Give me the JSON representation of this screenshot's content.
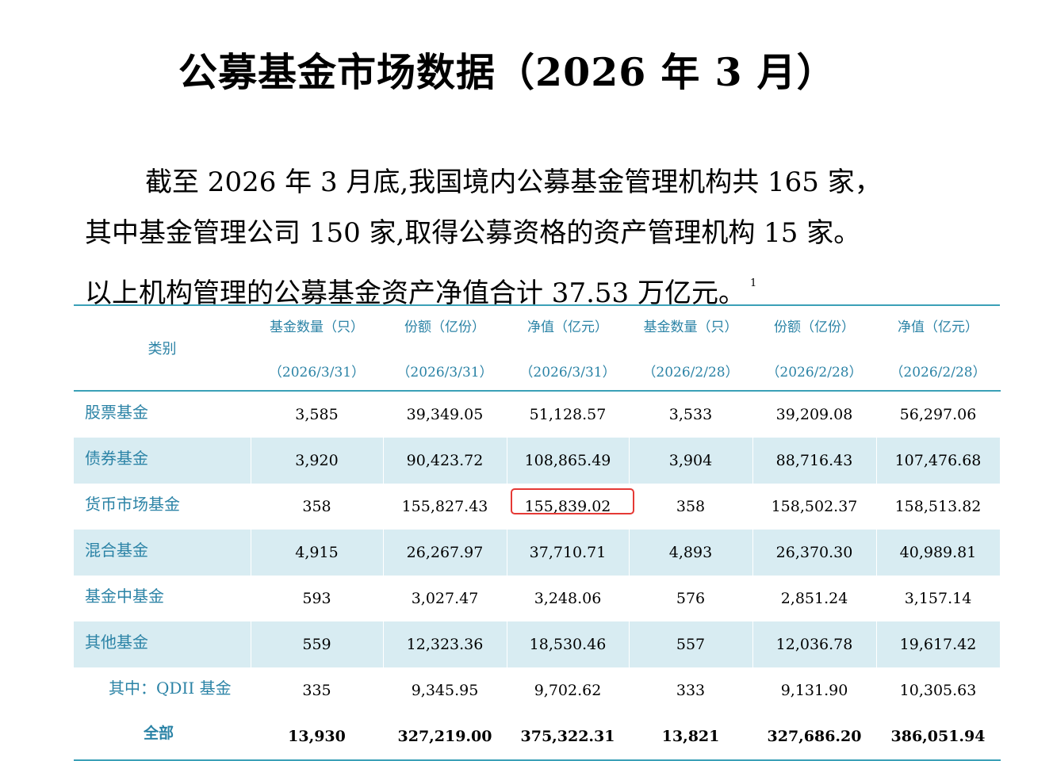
{
  "title": "公募基金市场数据（2026 年 3 月）",
  "paragraph": {
    "line1": "截至 2026 年 3 月底,我国境内公募基金管理机构共 165 家，",
    "line2": "其中基金管理公司 150 家,取得公募资格的资产管理机构 15 家。",
    "line3": "以上机构管理的公募基金资产净值合计 37.53 万亿元。",
    "footnote_mark": "1"
  },
  "table": {
    "category_header": "类别",
    "headers": [
      {
        "label": "基金数量（只）",
        "date": "（2026/3/31）"
      },
      {
        "label": "份额（亿份）",
        "date": "（2026/3/31）"
      },
      {
        "label": "净值（亿元）",
        "date": "（2026/3/31）"
      },
      {
        "label": "基金数量（只）",
        "date": "（2026/2/28）"
      },
      {
        "label": "份额（亿份）",
        "date": "（2026/2/28）"
      },
      {
        "label": "净值（亿元）",
        "date": "（2026/2/28）"
      }
    ],
    "rows": [
      {
        "name": "股票基金",
        "values": [
          "3,585",
          "39,349.05",
          "51,128.57",
          "3,533",
          "39,209.08",
          "56,297.06"
        ]
      },
      {
        "name": "债券基金",
        "values": [
          "3,920",
          "90,423.72",
          "108,865.49",
          "3,904",
          "88,716.43",
          "107,476.68"
        ]
      },
      {
        "name": "货币市场基金",
        "values": [
          "358",
          "155,827.43",
          "155,839.02",
          "358",
          "158,502.37",
          "158,513.82"
        ]
      },
      {
        "name": "混合基金",
        "values": [
          "4,915",
          "26,267.97",
          "37,710.71",
          "4,893",
          "26,370.30",
          "40,989.81"
        ]
      },
      {
        "name": "基金中基金",
        "values": [
          "593",
          "3,027.47",
          "3,248.06",
          "576",
          "2,851.24",
          "3,157.14"
        ]
      },
      {
        "name": "其他基金",
        "values": [
          "559",
          "12,323.36",
          "18,530.46",
          "557",
          "12,036.78",
          "19,617.42"
        ]
      },
      {
        "name": "其中：QDII 基金",
        "values": [
          "335",
          "9,345.95",
          "9,702.62",
          "333",
          "9,131.90",
          "10,305.63"
        ]
      },
      {
        "name": "全部",
        "values": [
          "13,930",
          "327,219.00",
          "375,322.31",
          "13,821",
          "327,686.20",
          "386,051.94"
        ]
      }
    ],
    "highlight_color": "#e53935",
    "accent_color": "#2b83a6",
    "shade_color": "#d8ecf2"
  }
}
